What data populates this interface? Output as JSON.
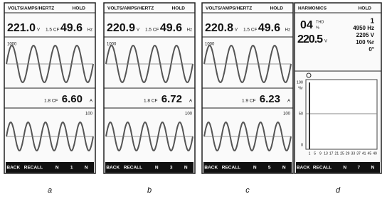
{
  "panels": [
    {
      "header": "VOLTS/AMPS/HERTZ",
      "hold": "HOLD",
      "voltage": "221.0",
      "voltage_unit": "V",
      "cf_top": "1.5 CF",
      "frequency": "49.6",
      "frequency_unit": "Hz",
      "scale_top": "1000",
      "cf_bottom": "1.8 CF",
      "current": "6.60",
      "current_unit": "A",
      "scale_bottom": "100",
      "footer": [
        "BACK",
        "RECALL",
        "N",
        "1",
        "N"
      ],
      "caption": "a"
    },
    {
      "header": "VOLTS/AMPS/HERTZ",
      "hold": "HOLD",
      "voltage": "220.9",
      "voltage_unit": "V",
      "cf_top": "1.5 CF",
      "frequency": "49.6",
      "frequency_unit": "Hz",
      "scale_top": "1000",
      "cf_bottom": "1.8 CF",
      "current": "6.72",
      "current_unit": "A",
      "scale_bottom": "100",
      "footer": [
        "BACK",
        "RECALL",
        "N",
        "3",
        "N"
      ],
      "caption": "b"
    },
    {
      "header": "VOLTS/AMPS/HERTZ",
      "hold": "HOLD",
      "voltage": "220.8",
      "voltage_unit": "V",
      "cf_top": "1.5 CF",
      "frequency": "49.6",
      "frequency_unit": "Hz",
      "scale_top": "1000",
      "cf_bottom": "1.9 CF",
      "current": "6.23",
      "current_unit": "A",
      "scale_bottom": "100",
      "footer": [
        "BACK",
        "RECALL",
        "N",
        "5",
        "N"
      ],
      "caption": "c"
    }
  ],
  "harmonics": {
    "header": "HARMONICS",
    "hold": "HOLD",
    "thd": "04",
    "thd_label": "THD",
    "thd_unit": "%",
    "order": "1",
    "freq": "4950 Hz",
    "volt": "2205 V",
    "pct": "100 %r",
    "phase": "0°",
    "voltage": "220.5",
    "voltage_unit": "V",
    "y_labels": [
      "100",
      "%r",
      "50",
      "0"
    ],
    "x_labels": [
      "1",
      "5",
      "9",
      "13",
      "17",
      "21",
      "25",
      "29",
      "33",
      "37",
      "41",
      "45",
      "49"
    ],
    "footer": [
      "BACK",
      "RECALL",
      "N",
      "7",
      "N"
    ],
    "caption": "d"
  }
}
